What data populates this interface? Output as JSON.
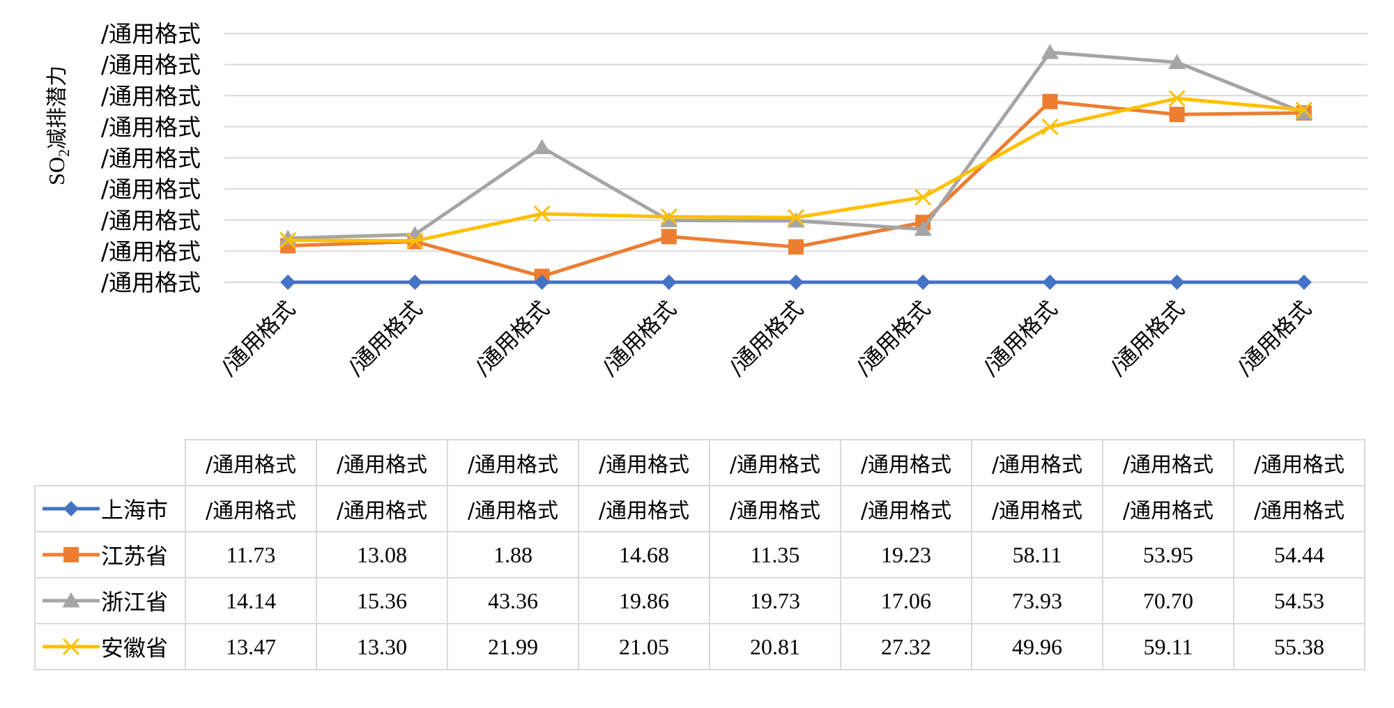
{
  "colors": {
    "上海市": "#4472C4",
    "江苏省": "#ED7D31",
    "浙江省": "#A5A5A5",
    "安徽省": "#FFC000",
    "grid": "#d9d9d9"
  },
  "chart_data": {
    "type": "line",
    "ylabel": "SO",
    "ylabel_sub": "2",
    "ylabel_rest": "减排潜力",
    "ylim": [
      0,
      80
    ],
    "y_tick_labels": [
      "/通用格式",
      "/通用格式",
      "/通用格式",
      "/通用格式",
      "/通用格式",
      "/通用格式",
      "/通用格式",
      "/通用格式",
      "/通用格式"
    ],
    "categories": [
      "/通用格式",
      "/通用格式",
      "/通用格式",
      "/通用格式",
      "/通用格式",
      "/通用格式",
      "/通用格式",
      "/通用格式",
      "/通用格式"
    ],
    "grid": true,
    "legend_placement": "data-table",
    "series": [
      {
        "name": "上海市",
        "marker": "diamond",
        "values": [
          0,
          0,
          0,
          0,
          0,
          0,
          0,
          0,
          0
        ],
        "table_values": [
          "/通用格式",
          "/通用格式",
          "/通用格式",
          "/通用格式",
          "/通用格式",
          "/通用格式",
          "/通用格式",
          "/通用格式",
          "/通用格式"
        ]
      },
      {
        "name": "江苏省",
        "marker": "square",
        "values": [
          11.73,
          13.08,
          1.88,
          14.68,
          11.35,
          19.23,
          58.11,
          53.95,
          54.44
        ],
        "table_values": [
          "11.73",
          "13.08",
          "1.88",
          "14.68",
          "11.35",
          "19.23",
          "58.11",
          "53.95",
          "54.44"
        ]
      },
      {
        "name": "浙江省",
        "marker": "triangle",
        "values": [
          14.14,
          15.36,
          43.36,
          19.86,
          19.73,
          17.06,
          73.93,
          70.7,
          54.53
        ],
        "table_values": [
          "14.14",
          "15.36",
          "43.36",
          "19.86",
          "19.73",
          "17.06",
          "73.93",
          "70.70",
          "54.53"
        ]
      },
      {
        "name": "安徽省",
        "marker": "x",
        "values": [
          13.47,
          13.3,
          21.99,
          21.05,
          20.81,
          27.32,
          49.96,
          59.11,
          55.38
        ],
        "table_values": [
          "13.47",
          "13.30",
          "21.99",
          "21.05",
          "20.81",
          "27.32",
          "49.96",
          "59.11",
          "55.38"
        ]
      }
    ]
  }
}
